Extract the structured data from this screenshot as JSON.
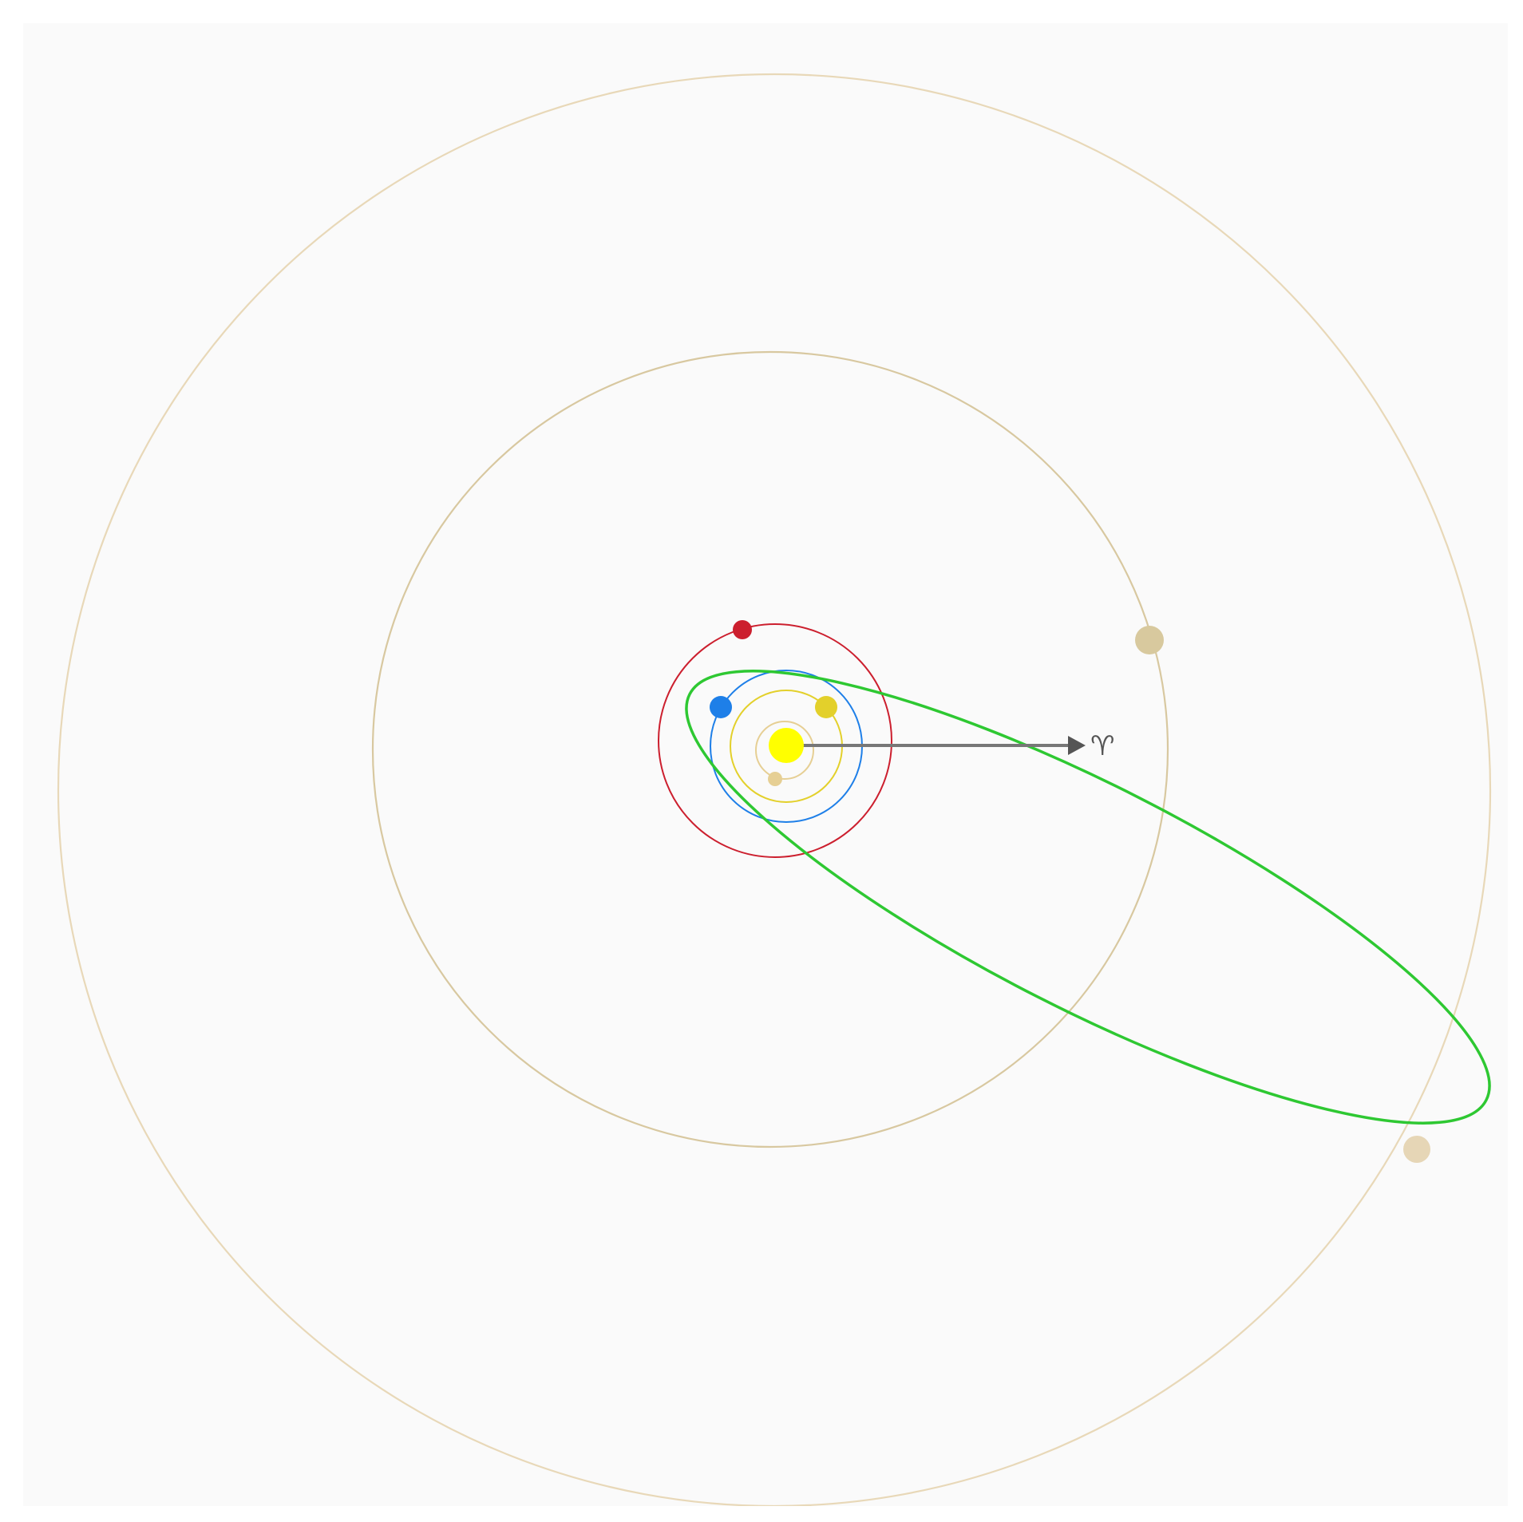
{
  "diagram": {
    "background_color": "#fafafa",
    "page_color": "#ffffff",
    "vernal_equinox": {
      "symbol": "♈",
      "color": "#555555"
    },
    "sun": {
      "color": "#ffff00"
    },
    "orbits": [
      {
        "id": "mercury",
        "color": "#e6cf94"
      },
      {
        "id": "venus",
        "color": "#e3d02b"
      },
      {
        "id": "earth",
        "color": "#1e7fe8"
      },
      {
        "id": "mars",
        "color": "#cc1f2e"
      },
      {
        "id": "jupiter",
        "color": "#d8c8a0"
      },
      {
        "id": "saturn",
        "color": "#e8d8b8"
      }
    ],
    "planet_colors": {
      "mercury": "#e6cf94",
      "venus": "#e3d02b",
      "earth": "#1e7fe8",
      "mars": "#cc1f2e",
      "jupiter": "#d8c99e",
      "saturn": "#e6d6b6"
    },
    "comet_orbit": {
      "color": "#2ec832"
    }
  }
}
